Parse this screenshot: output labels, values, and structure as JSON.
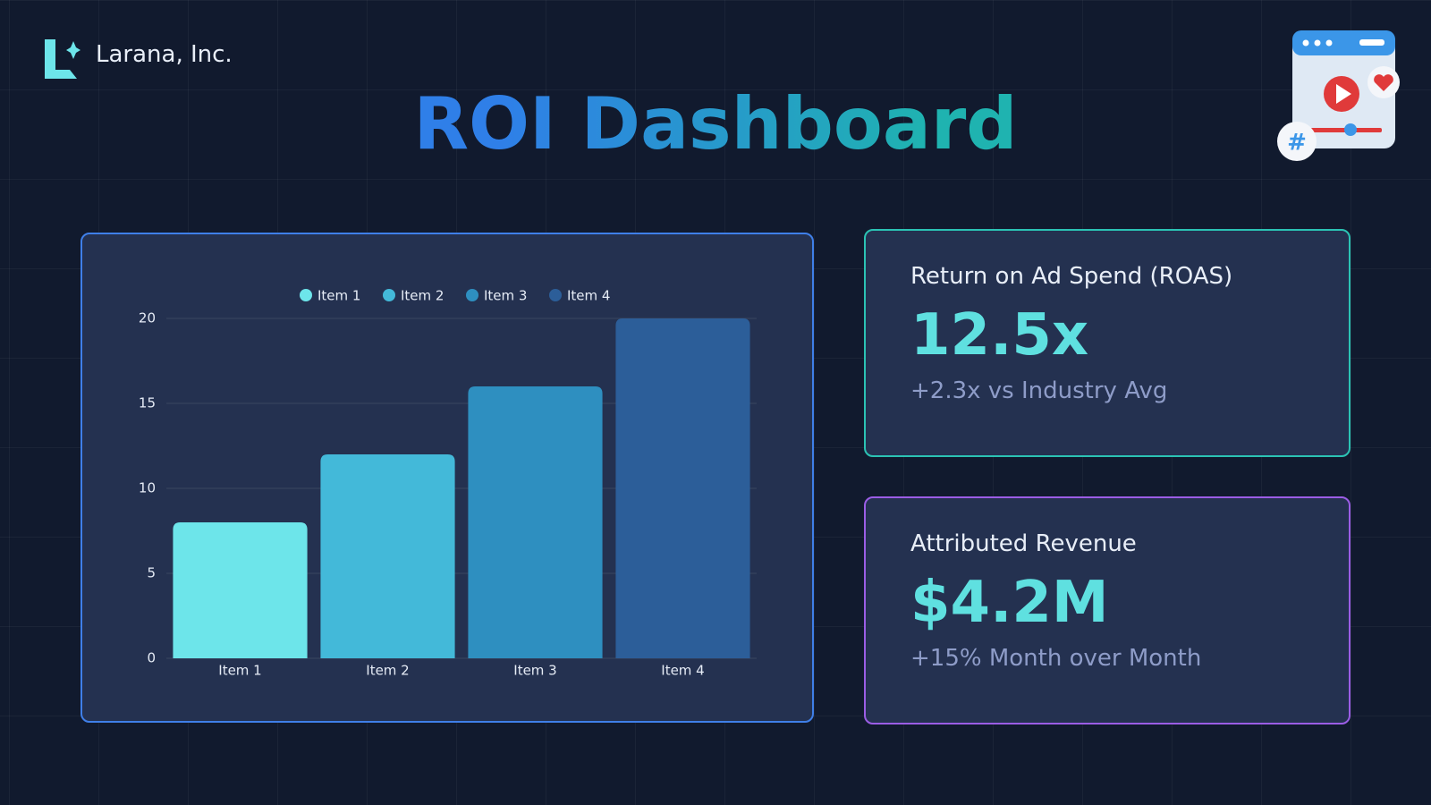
{
  "brand": "Larana, Inc.",
  "title": "ROI Dashboard",
  "chart_data": {
    "type": "bar",
    "categories": [
      "Item 1",
      "Item 2",
      "Item 3",
      "Item 4"
    ],
    "values": [
      8,
      12,
      16,
      20
    ],
    "colors": [
      "#6de5ea",
      "#43b9d9",
      "#2e8fc0",
      "#2c5e99"
    ],
    "ylim": [
      0,
      20
    ],
    "yticks": [
      0,
      5,
      10,
      15,
      20
    ],
    "grid": true,
    "legend": "top"
  },
  "cards": [
    {
      "label": "Return on Ad Spend (ROAS)",
      "value": "12.5x",
      "note": "+2.3x vs Industry Avg"
    },
    {
      "label": "Attributed Revenue",
      "value": "$4.2M",
      "note": "+15% Month over Month"
    }
  ]
}
